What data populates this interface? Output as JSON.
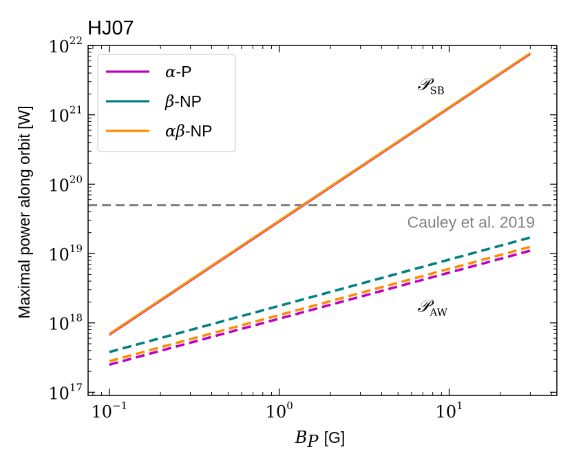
{
  "chart_data": {
    "type": "line",
    "title": "HJ07",
    "xlabel": {
      "symbol": "B",
      "subscript": "P",
      "unit": "[G]"
    },
    "ylabel": "Maximal power along orbit [W]",
    "xscale": "log",
    "yscale": "log",
    "xlim": [
      0.075,
      43
    ],
    "ylim": [
      9e+16,
      1e+22
    ],
    "xticks": [
      {
        "value": 0.1,
        "base": "10",
        "exp": "−1"
      },
      {
        "value": 1,
        "base": "10",
        "exp": "0"
      },
      {
        "value": 10,
        "base": "10",
        "exp": "1"
      }
    ],
    "yticks": [
      {
        "value": 1e+17,
        "base": "10",
        "exp": "17"
      },
      {
        "value": 1e+18,
        "base": "10",
        "exp": "18"
      },
      {
        "value": 1e+19,
        "base": "10",
        "exp": "19"
      },
      {
        "value": 1e+20,
        "base": "10",
        "exp": "20"
      },
      {
        "value": 1e+21,
        "base": "10",
        "exp": "21"
      },
      {
        "value": 1e+22,
        "base": "10",
        "exp": "22"
      }
    ],
    "series": [
      {
        "name": "α-P",
        "label_symbol": "α",
        "label_rest": "-P",
        "color": "#bf00bf",
        "style": "solid",
        "group": "SB",
        "x": [
          0.1,
          30
        ],
        "y": [
          6.6e+17,
          7.4e+21
        ]
      },
      {
        "name": "β-NP",
        "label_symbol": "β",
        "label_rest": "-NP",
        "color": "#008080",
        "style": "solid",
        "group": "SB",
        "x": [
          0.1,
          30
        ],
        "y": [
          6.9e+17,
          7.7e+21
        ]
      },
      {
        "name": "αβ-NP",
        "label_symbol": "αβ",
        "label_rest": "-NP",
        "color": "#ff8c00",
        "style": "solid",
        "group": "SB",
        "x": [
          0.1,
          30
        ],
        "y": [
          6.9e+17,
          7.7e+21
        ]
      },
      {
        "name": "α-P",
        "color": "#bf00bf",
        "style": "dashed",
        "group": "AW",
        "x": [
          0.1,
          30
        ],
        "y": [
          2.5e+17,
          1.1e+19
        ]
      },
      {
        "name": "β-NP",
        "color": "#008080",
        "style": "dashed",
        "group": "AW",
        "x": [
          0.1,
          30
        ],
        "y": [
          3.8e+17,
          1.7e+19
        ]
      },
      {
        "name": "αβ-NP",
        "color": "#ff8c00",
        "style": "dashed",
        "group": "AW",
        "x": [
          0.1,
          30
        ],
        "y": [
          2.8e+17,
          1.25e+19
        ]
      }
    ],
    "reference_line": {
      "y": 5e+19,
      "label": "Cauley et al. 2019",
      "color": "#808080",
      "style": "dashed"
    },
    "annotations": [
      {
        "main": "𝒫",
        "sub": "SB",
        "x": 6.5,
        "y": 2.3e+21
      },
      {
        "main": "𝒫",
        "sub": "AW",
        "x": 6.5,
        "y": 1.45e+18
      }
    ],
    "legend": {
      "position": "top-left",
      "entries": [
        0,
        1,
        2
      ]
    }
  }
}
